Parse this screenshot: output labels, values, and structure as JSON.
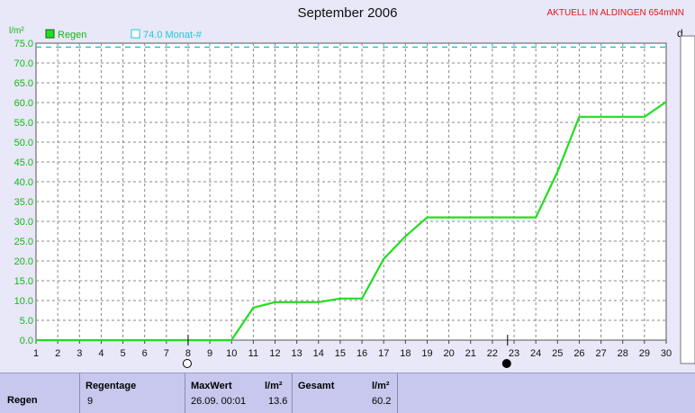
{
  "header": {
    "title": "September 2006",
    "station": "AKTUELL IN ALDINGEN 654mNN",
    "right_unit": "d"
  },
  "chart_data": {
    "type": "line",
    "title": "September 2006",
    "ylabel": "l/m²",
    "ylim": [
      0,
      75
    ],
    "yticks": [
      "0.0",
      "5.0",
      "10.0",
      "15.0",
      "20.0",
      "25.0",
      "30.0",
      "35.0",
      "40.0",
      "45.0",
      "50.0",
      "55.0",
      "60.0",
      "65.0",
      "70.0",
      "75.0"
    ],
    "xlim": [
      1,
      30
    ],
    "xticks": [
      "1",
      "2",
      "3",
      "4",
      "5",
      "6",
      "7",
      "8",
      "9",
      "10",
      "11",
      "12",
      "13",
      "14",
      "15",
      "16",
      "17",
      "18",
      "19",
      "20",
      "21",
      "22",
      "23",
      "24",
      "25",
      "26",
      "27",
      "28",
      "29",
      "30"
    ],
    "grid": true,
    "legend": [
      {
        "label": "Regen",
        "color": "#22dd22"
      },
      {
        "label": "74.0 Monat-#",
        "color": "#22c8d8"
      }
    ],
    "series": [
      {
        "name": "Regen",
        "color": "#22dd22",
        "x": [
          1,
          10,
          11,
          12,
          13,
          14,
          15,
          16,
          17,
          18,
          19,
          20,
          21,
          22,
          23,
          24,
          25,
          26,
          27,
          28,
          29,
          30
        ],
        "y": [
          0,
          0,
          8.2,
          9.6,
          9.6,
          9.6,
          10.5,
          10.5,
          20.5,
          26.2,
          31.0,
          31.0,
          31.0,
          31.0,
          31.0,
          31.0,
          42.5,
          56.4,
          56.4,
          56.4,
          56.4,
          60.2
        ]
      }
    ],
    "reference_line": {
      "name": "74.0 Monat-#",
      "y": 74.0,
      "color": "#22c8d8"
    },
    "moon_phases": [
      {
        "x": 8,
        "phase": "full"
      },
      {
        "x": 22.7,
        "phase": "new"
      }
    ]
  },
  "footer": {
    "row_label": "Regen",
    "regentage_label": "Regentage",
    "regentage_value": "9",
    "maxwert_label": "MaxWert",
    "maxwert_unit": "l/m²",
    "maxwert_date": "26.09.  00:01",
    "maxwert_value": "13.6",
    "gesamt_label": "Gesamt",
    "gesamt_unit": "l/m²",
    "gesamt_value": "60.2"
  }
}
